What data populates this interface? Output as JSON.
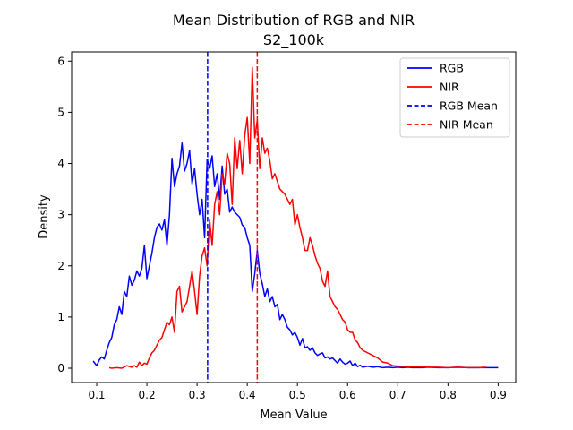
{
  "chart_data": {
    "type": "line",
    "title": "Mean Distribution of RGB and NIR",
    "subtitle": "S2_100k",
    "xlabel": "Mean Value",
    "ylabel": "Density",
    "xlim": [
      0.05,
      0.935
    ],
    "ylim": [
      -0.28,
      6.18
    ],
    "xticks": [
      "0.1",
      "0.2",
      "0.3",
      "0.4",
      "0.5",
      "0.6",
      "0.7",
      "0.8",
      "0.9"
    ],
    "yticks": [
      "0",
      "1",
      "2",
      "3",
      "4",
      "5",
      "6"
    ],
    "legend_position": "top-right",
    "grid": false,
    "series": [
      {
        "name": "RGB",
        "color": "#0000ff",
        "style": "solid",
        "x": [
          0.093,
          0.1,
          0.105,
          0.11,
          0.115,
          0.12,
          0.125,
          0.13,
          0.135,
          0.14,
          0.145,
          0.15,
          0.155,
          0.16,
          0.165,
          0.17,
          0.175,
          0.18,
          0.185,
          0.19,
          0.195,
          0.2,
          0.205,
          0.21,
          0.215,
          0.22,
          0.225,
          0.23,
          0.235,
          0.24,
          0.245,
          0.25,
          0.255,
          0.26,
          0.265,
          0.27,
          0.275,
          0.28,
          0.285,
          0.29,
          0.295,
          0.3,
          0.305,
          0.31,
          0.315,
          0.32,
          0.325,
          0.33,
          0.335,
          0.34,
          0.345,
          0.35,
          0.355,
          0.36,
          0.365,
          0.37,
          0.375,
          0.38,
          0.385,
          0.39,
          0.395,
          0.4,
          0.405,
          0.41,
          0.415,
          0.42,
          0.425,
          0.43,
          0.435,
          0.44,
          0.445,
          0.45,
          0.455,
          0.46,
          0.465,
          0.47,
          0.475,
          0.48,
          0.485,
          0.49,
          0.495,
          0.5,
          0.505,
          0.51,
          0.515,
          0.52,
          0.525,
          0.53,
          0.535,
          0.54,
          0.545,
          0.55,
          0.555,
          0.56,
          0.565,
          0.57,
          0.575,
          0.58,
          0.585,
          0.59,
          0.595,
          0.6,
          0.605,
          0.61,
          0.615,
          0.62,
          0.625,
          0.63,
          0.64,
          0.65,
          0.66,
          0.67,
          0.68,
          0.69,
          0.7,
          0.71,
          0.72,
          0.73,
          0.74,
          0.75,
          0.76,
          0.78,
          0.8,
          0.82,
          0.84,
          0.86,
          0.88,
          0.89,
          0.9
        ],
        "y": [
          0.14,
          0.05,
          0.16,
          0.22,
          0.18,
          0.35,
          0.5,
          0.6,
          0.85,
          0.95,
          1.2,
          1.05,
          1.5,
          1.4,
          1.8,
          1.62,
          1.72,
          1.9,
          1.8,
          1.95,
          2.4,
          1.75,
          2.0,
          2.25,
          2.55,
          2.75,
          2.82,
          2.7,
          2.9,
          2.4,
          3.0,
          4.1,
          3.55,
          3.8,
          3.95,
          4.4,
          3.85,
          4.0,
          4.25,
          3.6,
          3.9,
          3.4,
          3.0,
          3.3,
          2.55,
          4.08,
          3.9,
          4.15,
          3.55,
          3.8,
          3.3,
          3.95,
          3.4,
          3.5,
          3.05,
          3.15,
          3.05,
          3.0,
          2.95,
          2.8,
          2.75,
          2.55,
          2.4,
          1.5,
          1.85,
          2.3,
          1.85,
          1.65,
          1.4,
          1.55,
          1.3,
          1.4,
          1.2,
          1.25,
          0.95,
          1.05,
          0.95,
          0.8,
          0.75,
          0.65,
          0.7,
          0.6,
          0.45,
          0.58,
          0.4,
          0.42,
          0.35,
          0.4,
          0.3,
          0.25,
          0.28,
          0.3,
          0.2,
          0.22,
          0.18,
          0.2,
          0.15,
          0.1,
          0.18,
          0.12,
          0.08,
          0.1,
          0.14,
          0.05,
          0.1,
          0.03,
          0.06,
          0.02,
          0.04,
          0.02,
          0.03,
          0.01,
          0.02,
          0.01,
          0.02,
          0.01,
          0.02,
          0.01,
          0.01,
          0.01,
          0.02,
          0.01,
          0.01,
          0.02,
          0.01,
          0.01,
          0.01,
          0.01,
          0.01
        ]
      },
      {
        "name": "NIR",
        "color": "#ff0000",
        "style": "solid",
        "x": [
          0.125,
          0.13,
          0.14,
          0.15,
          0.16,
          0.17,
          0.175,
          0.18,
          0.185,
          0.19,
          0.195,
          0.2,
          0.205,
          0.21,
          0.215,
          0.22,
          0.225,
          0.23,
          0.235,
          0.24,
          0.245,
          0.25,
          0.255,
          0.26,
          0.265,
          0.27,
          0.275,
          0.28,
          0.285,
          0.29,
          0.295,
          0.3,
          0.305,
          0.31,
          0.315,
          0.32,
          0.325,
          0.33,
          0.335,
          0.34,
          0.345,
          0.35,
          0.355,
          0.36,
          0.365,
          0.37,
          0.375,
          0.38,
          0.385,
          0.39,
          0.395,
          0.4,
          0.405,
          0.41,
          0.415,
          0.42,
          0.425,
          0.43,
          0.435,
          0.44,
          0.445,
          0.45,
          0.455,
          0.46,
          0.465,
          0.47,
          0.475,
          0.48,
          0.485,
          0.49,
          0.495,
          0.5,
          0.505,
          0.51,
          0.515,
          0.52,
          0.525,
          0.53,
          0.535,
          0.54,
          0.545,
          0.55,
          0.555,
          0.56,
          0.565,
          0.57,
          0.575,
          0.58,
          0.585,
          0.59,
          0.595,
          0.6,
          0.605,
          0.61,
          0.615,
          0.62,
          0.625,
          0.63,
          0.64,
          0.65,
          0.66,
          0.67,
          0.68,
          0.69,
          0.7,
          0.72,
          0.74,
          0.76,
          0.78,
          0.8,
          0.82,
          0.84,
          0.86,
          0.875
        ],
        "y": [
          0.01,
          0.0,
          0.01,
          0.0,
          0.05,
          0.02,
          0.05,
          0.02,
          0.12,
          0.05,
          0.1,
          0.08,
          0.2,
          0.3,
          0.35,
          0.45,
          0.55,
          0.6,
          0.75,
          0.9,
          0.85,
          1.0,
          0.7,
          1.5,
          1.6,
          1.1,
          1.2,
          1.3,
          1.6,
          1.9,
          1.5,
          1.05,
          1.8,
          2.2,
          2.35,
          2.0,
          2.9,
          2.4,
          3.2,
          3.45,
          3.0,
          3.8,
          3.6,
          4.2,
          4.0,
          3.2,
          4.5,
          3.9,
          4.45,
          3.8,
          4.55,
          4.9,
          4.0,
          5.88,
          4.5,
          4.85,
          3.9,
          4.5,
          4.2,
          4.3,
          4.05,
          3.7,
          3.8,
          3.65,
          3.5,
          3.45,
          3.4,
          3.3,
          3.2,
          3.3,
          2.8,
          3.0,
          2.75,
          2.55,
          2.3,
          2.3,
          2.55,
          2.4,
          2.2,
          2.05,
          1.95,
          1.7,
          1.6,
          1.9,
          1.4,
          1.3,
          1.2,
          1.15,
          1.05,
          0.95,
          0.9,
          0.75,
          0.7,
          0.7,
          0.55,
          0.5,
          0.4,
          0.35,
          0.3,
          0.25,
          0.2,
          0.12,
          0.1,
          0.05,
          0.04,
          0.03,
          0.03,
          0.02,
          0.02,
          0.01,
          0.02,
          0.01,
          0.01,
          0.02
        ]
      },
      {
        "name": "RGB Mean",
        "color": "#0000ff",
        "style": "dashed",
        "x": 0.321
      },
      {
        "name": "NIR Mean",
        "color": "#ff0000",
        "style": "dashed",
        "x": 0.42
      }
    ]
  }
}
